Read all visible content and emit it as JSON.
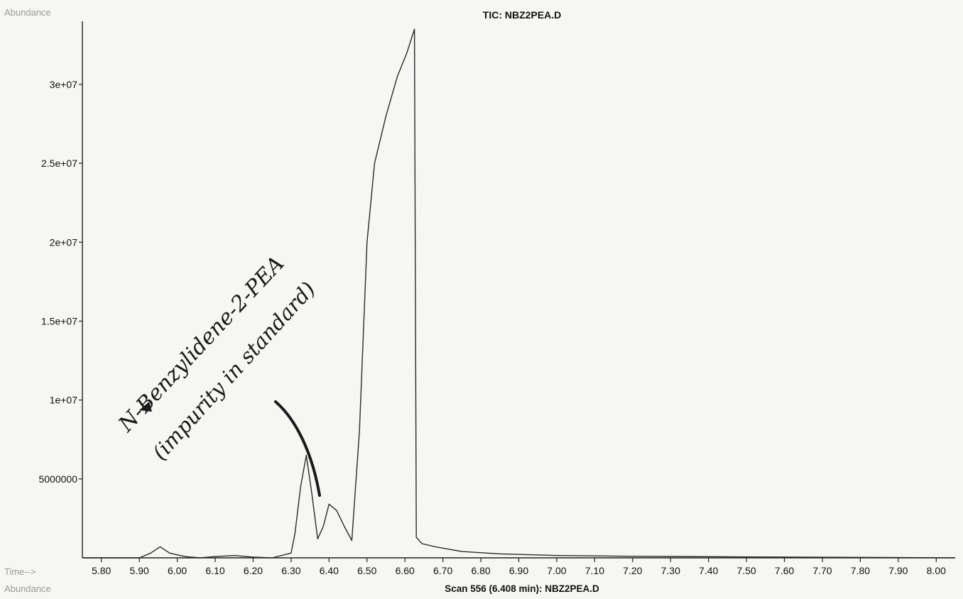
{
  "header": {
    "abundance_label": "Abundance",
    "title": "TIC: NBZ2PEA.D"
  },
  "footer": {
    "time_label": "Time-->",
    "abundance_label": "Abundance",
    "scan_label": "Scan 556 (6.408 min): NBZ2PEA.D"
  },
  "annotation": {
    "line1": "N-Benzylidene-2-PEA",
    "line2": "(impurity in standard)"
  },
  "colors": {
    "trace": "#2a2a2a",
    "axis": "#222222",
    "background": "#f6f6f4"
  },
  "chart_data": {
    "type": "line",
    "title": "TIC: NBZ2PEA.D",
    "xlabel": "Time-->",
    "ylabel": "Abundance",
    "xlim": [
      5.75,
      8.05
    ],
    "ylim": [
      0,
      34000000
    ],
    "x_ticks": [
      "5.80",
      "5.90",
      "6.00",
      "6.10",
      "6.20",
      "6.30",
      "6.40",
      "6.50",
      "6.60",
      "6.70",
      "6.80",
      "6.90",
      "7.00",
      "7.10",
      "7.20",
      "7.30",
      "7.40",
      "7.50",
      "7.60",
      "7.70",
      "7.80",
      "7.90",
      "8.00"
    ],
    "y_ticks": [
      "5000000",
      "1e+07",
      "1.5e+07",
      "2e+07",
      "2.5e+07",
      "3e+07"
    ],
    "y_tick_values": [
      5000000,
      10000000,
      15000000,
      20000000,
      25000000,
      30000000
    ],
    "series": [
      {
        "x": [
          5.75,
          5.9,
          5.93,
          5.955,
          5.98,
          6.02,
          6.06,
          6.1,
          6.15,
          6.2,
          6.25,
          6.3,
          6.31,
          6.325,
          6.34,
          6.355,
          6.37,
          6.385,
          6.4,
          6.42,
          6.44,
          6.46,
          6.48,
          6.5,
          6.52,
          6.55,
          6.58,
          6.605,
          6.625,
          6.63,
          6.645,
          6.68,
          6.75,
          6.85,
          7.0,
          7.2,
          7.5,
          7.8,
          8.05
        ],
        "y": [
          0,
          0,
          300000,
          700000,
          300000,
          80000,
          0,
          80000,
          150000,
          50000,
          0,
          300000,
          1500000,
          4500000,
          6500000,
          4000000,
          1200000,
          2000000,
          3400000,
          3000000,
          2000000,
          1100000,
          8000000,
          20000000,
          25000000,
          28000000,
          30500000,
          32000000,
          33500000,
          1300000,
          900000,
          700000,
          400000,
          250000,
          150000,
          100000,
          60000,
          30000,
          0
        ]
      }
    ]
  }
}
